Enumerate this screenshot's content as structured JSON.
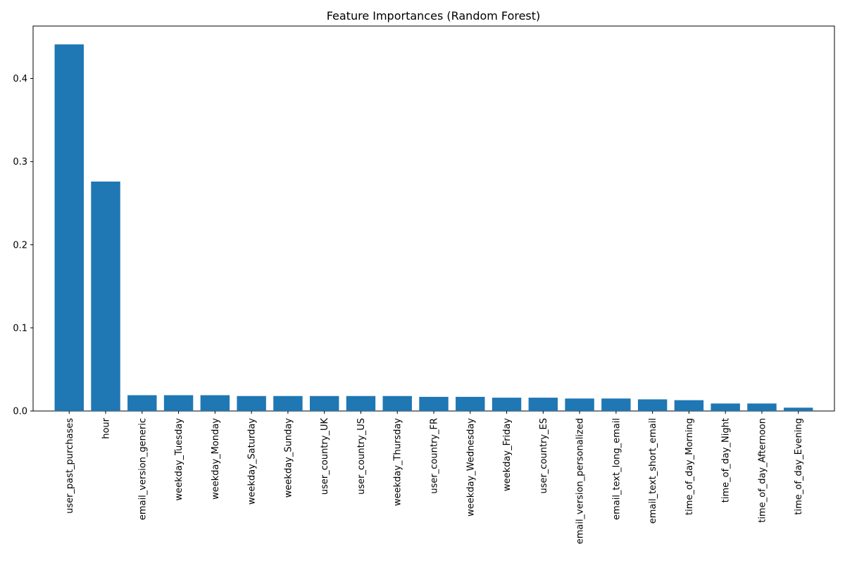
{
  "chart_data": {
    "type": "bar",
    "title": "Feature Importances (Random Forest)",
    "xlabel": "",
    "ylabel": "",
    "ylim": [
      0,
      0.4631
    ],
    "yticks": [
      0.0,
      0.1,
      0.2,
      0.3,
      0.4
    ],
    "ytick_labels": [
      "0.0",
      "0.1",
      "0.2",
      "0.3",
      "0.4"
    ],
    "grid": false,
    "color": "#1f77b4",
    "categories": [
      "user_past_purchases",
      "hour",
      "email_version_generic",
      "weekday_Tuesday",
      "weekday_Monday",
      "weekday_Saturday",
      "weekday_Sunday",
      "user_country_UK",
      "user_country_US",
      "weekday_Thursday",
      "user_country_FR",
      "weekday_Wednesday",
      "weekday_Friday",
      "user_country_ES",
      "email_version_personalized",
      "email_text_long_email",
      "email_text_short_email",
      "time_of_day_Morning",
      "time_of_day_Night",
      "time_of_day_Afternoon",
      "time_of_day_Evening"
    ],
    "values": [
      0.441,
      0.276,
      0.019,
      0.019,
      0.019,
      0.018,
      0.018,
      0.018,
      0.018,
      0.018,
      0.017,
      0.017,
      0.016,
      0.016,
      0.015,
      0.015,
      0.014,
      0.013,
      0.009,
      0.009,
      0.004
    ]
  }
}
